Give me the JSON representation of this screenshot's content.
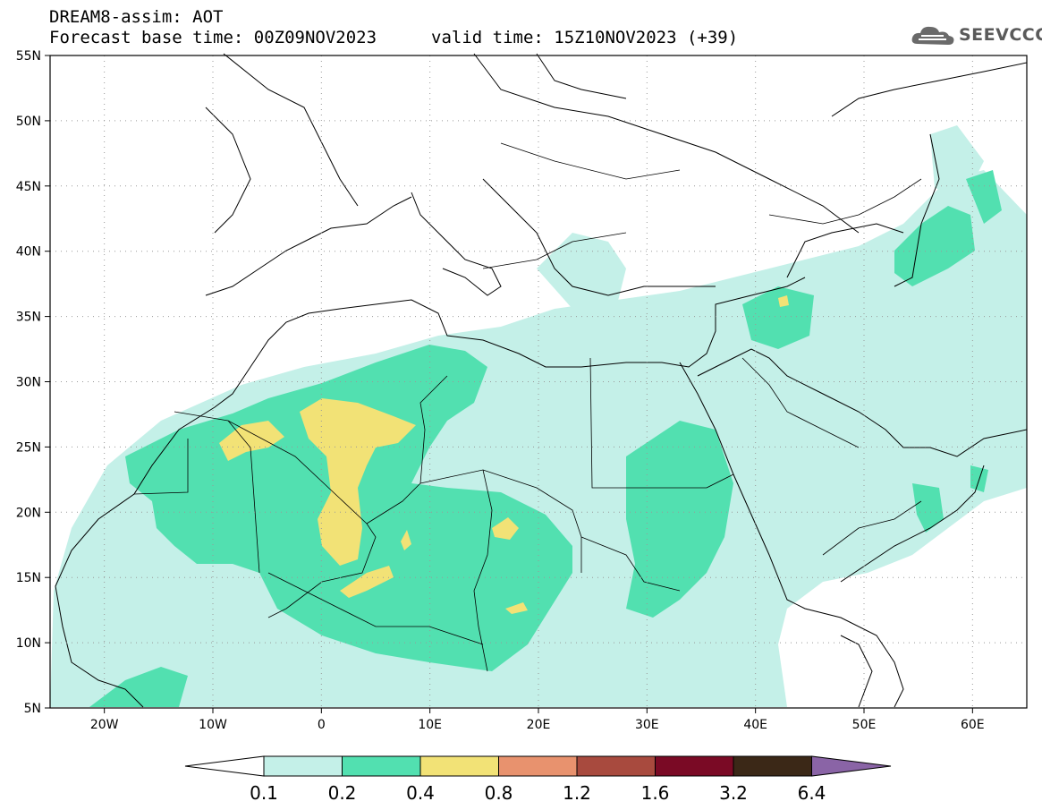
{
  "header": {
    "title": "DREAM8-assim: AOT",
    "base_time": "Forecast base time: 00Z09NOV2023",
    "valid_time": "valid time: 15Z10NOV2023 (+39)"
  },
  "logo": {
    "text": "SEEVCCC",
    "icon": "cloud-icon"
  },
  "map": {
    "lon_range": [
      -25,
      65
    ],
    "lat_range": [
      5,
      55
    ],
    "grid": "dotted",
    "lon_ticks": [
      {
        "value": -20,
        "label": "20W"
      },
      {
        "value": -10,
        "label": "10W"
      },
      {
        "value": 0,
        "label": "0"
      },
      {
        "value": 10,
        "label": "10E"
      },
      {
        "value": 20,
        "label": "20E"
      },
      {
        "value": 30,
        "label": "30E"
      },
      {
        "value": 40,
        "label": "40E"
      },
      {
        "value": 50,
        "label": "50E"
      },
      {
        "value": 60,
        "label": "60E"
      }
    ],
    "lat_ticks": [
      {
        "value": 5,
        "label": "5N"
      },
      {
        "value": 10,
        "label": "10N"
      },
      {
        "value": 15,
        "label": "15N"
      },
      {
        "value": 20,
        "label": "20N"
      },
      {
        "value": 25,
        "label": "25N"
      },
      {
        "value": 30,
        "label": "30N"
      },
      {
        "value": 35,
        "label": "35N"
      },
      {
        "value": 40,
        "label": "40N"
      },
      {
        "value": 45,
        "label": "45N"
      },
      {
        "value": 50,
        "label": "50N"
      },
      {
        "value": 55,
        "label": "55N"
      }
    ]
  },
  "colorbar": {
    "bins": [
      {
        "color": "#c4f0e8"
      },
      {
        "color": "#52e0b0"
      },
      {
        "color": "#f2e276"
      },
      {
        "color": "#e8926e"
      },
      {
        "color": "#a84a3e"
      },
      {
        "color": "#7a0a25"
      },
      {
        "color": "#3b2817"
      }
    ],
    "low_color": "#ffffff",
    "high_color": "#8a64a6",
    "labels": [
      "0.1",
      "0.2",
      "0.4",
      "0.8",
      "1.2",
      "1.6",
      "3.2",
      "6.4"
    ]
  }
}
